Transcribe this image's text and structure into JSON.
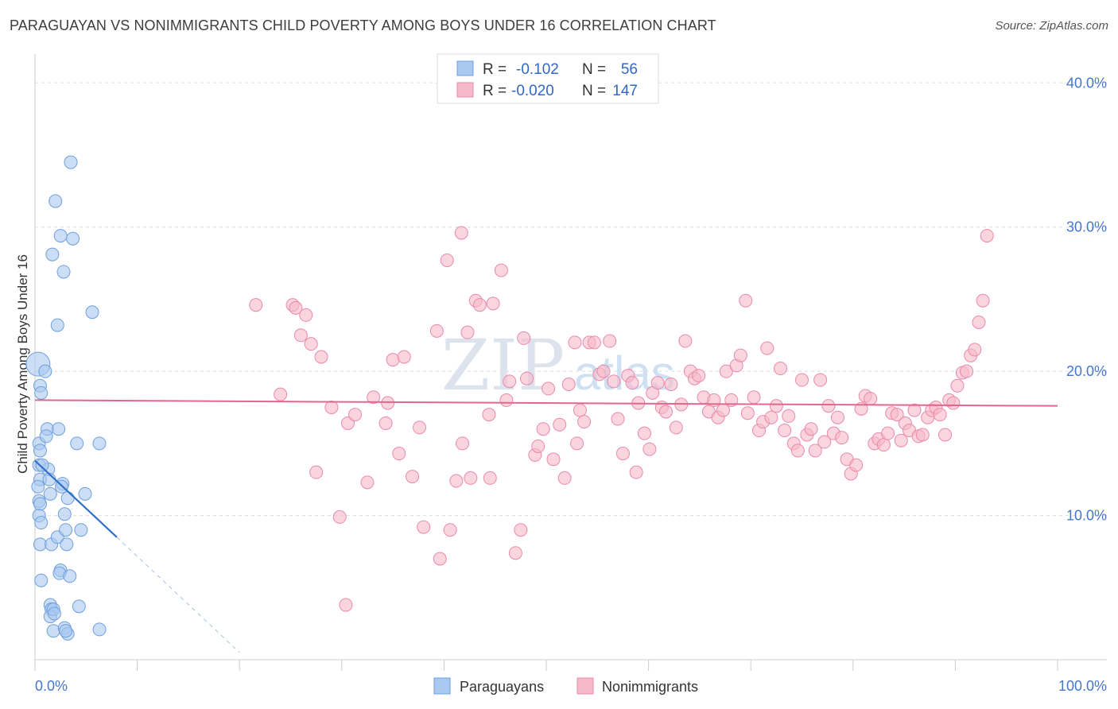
{
  "header": {
    "title": "PARAGUAYAN VS NONIMMIGRANTS CHILD POVERTY AMONG BOYS UNDER 16 CORRELATION CHART",
    "source": "Source: ZipAtlas.com"
  },
  "watermark": {
    "zip": "ZIP",
    "atlas": "atlas"
  },
  "legend": {
    "rows": [
      {
        "r_label": "R =",
        "r_value": "-0.102",
        "n_label": "N =",
        "n_value": "56"
      },
      {
        "r_label": "R =",
        "r_value": "-0.020",
        "n_label": "N =",
        "n_value": "147"
      }
    ]
  },
  "colors": {
    "blue_fill": "#a9c8f0",
    "blue_stroke": "#6f9fdc",
    "blue_line": "#2f6fc9",
    "pink_fill": "#f6b9cc",
    "pink_stroke": "#e98aa8",
    "pink_line": "#e0688f",
    "grid": "#dddddd",
    "tick_text": "#4477cc"
  },
  "chart_data": {
    "type": "scatter",
    "title": "PARAGUAYAN VS NONIMMIGRANTS CHILD POVERTY AMONG BOYS UNDER 16 CORRELATION CHART",
    "xlabel": "",
    "ylabel": "Child Poverty Among Boys Under 16",
    "xlim": [
      0,
      100
    ],
    "ylim": [
      0,
      42
    ],
    "x_tick_labels": [
      "0.0%",
      "100.0%"
    ],
    "y_ticks": [
      10,
      20,
      30,
      40
    ],
    "y_tick_labels": [
      "10.0%",
      "20.0%",
      "30.0%",
      "40.0%"
    ],
    "grid": true,
    "legend_position": "top-center",
    "series": [
      {
        "name": "Paraguayans",
        "R": -0.102,
        "N": 56,
        "trend": {
          "x0": 0,
          "y0": 13.8,
          "x1": 8,
          "y1": 8.5,
          "dashed_to_x": 20,
          "dashed_to_y": 0.5
        },
        "points": [
          [
            0.3,
            20.5
          ],
          [
            0.5,
            19.0
          ],
          [
            0.6,
            18.5
          ],
          [
            0.4,
            15.0
          ],
          [
            0.5,
            14.5
          ],
          [
            0.4,
            13.5
          ],
          [
            0.5,
            12.5
          ],
          [
            0.3,
            12.0
          ],
          [
            0.4,
            11.0
          ],
          [
            0.5,
            10.8
          ],
          [
            0.4,
            10.0
          ],
          [
            0.6,
            9.5
          ],
          [
            0.5,
            8.0
          ],
          [
            0.6,
            5.5
          ],
          [
            1.0,
            20.0
          ],
          [
            1.2,
            16.0
          ],
          [
            1.1,
            15.5
          ],
          [
            1.3,
            13.2
          ],
          [
            1.4,
            12.5
          ],
          [
            1.5,
            11.5
          ],
          [
            1.6,
            8.0
          ],
          [
            1.5,
            3.8
          ],
          [
            1.6,
            3.5
          ],
          [
            1.5,
            3.0
          ],
          [
            1.8,
            2.0
          ],
          [
            2.0,
            31.8
          ],
          [
            2.5,
            29.4
          ],
          [
            1.7,
            28.1
          ],
          [
            2.2,
            23.2
          ],
          [
            2.3,
            16.0
          ],
          [
            2.2,
            8.5
          ],
          [
            2.5,
            6.2
          ],
          [
            2.4,
            6.0
          ],
          [
            1.8,
            3.5
          ],
          [
            1.9,
            3.2
          ],
          [
            2.8,
            26.9
          ],
          [
            2.7,
            12.2
          ],
          [
            2.9,
            10.1
          ],
          [
            3.0,
            9.0
          ],
          [
            3.1,
            8.0
          ],
          [
            2.9,
            2.2
          ],
          [
            3.2,
            1.8
          ],
          [
            3.5,
            34.5
          ],
          [
            3.7,
            29.2
          ],
          [
            3.2,
            11.2
          ],
          [
            3.4,
            5.8
          ],
          [
            4.1,
            15.0
          ],
          [
            4.3,
            3.7
          ],
          [
            4.9,
            11.5
          ],
          [
            5.6,
            24.1
          ],
          [
            4.5,
            9.0
          ],
          [
            3.0,
            2.0
          ],
          [
            2.6,
            12.0
          ],
          [
            6.3,
            15.0
          ],
          [
            0.7,
            13.5
          ],
          [
            6.3,
            2.1
          ]
        ]
      },
      {
        "name": "Nonimmigrants",
        "R": -0.02,
        "N": 147,
        "trend": {
          "x0": 0,
          "y0": 18.0,
          "x1": 100,
          "y1": 17.6
        },
        "points": [
          [
            21.6,
            24.6
          ],
          [
            24.0,
            18.4
          ],
          [
            25.2,
            24.6
          ],
          [
            25.5,
            24.4
          ],
          [
            26.0,
            22.5
          ],
          [
            26.5,
            23.9
          ],
          [
            27.0,
            21.9
          ],
          [
            27.5,
            13.0
          ],
          [
            28.0,
            21.0
          ],
          [
            29.0,
            17.5
          ],
          [
            29.8,
            9.9
          ],
          [
            30.4,
            3.8
          ],
          [
            30.6,
            16.4
          ],
          [
            31.3,
            17.0
          ],
          [
            32.5,
            12.3
          ],
          [
            33.1,
            18.2
          ],
          [
            34.3,
            16.4
          ],
          [
            34.5,
            17.8
          ],
          [
            35.0,
            20.8
          ],
          [
            35.6,
            14.3
          ],
          [
            36.1,
            21.0
          ],
          [
            36.9,
            12.7
          ],
          [
            37.6,
            16.1
          ],
          [
            38.0,
            9.2
          ],
          [
            39.3,
            22.8
          ],
          [
            39.6,
            7.0
          ],
          [
            40.3,
            27.7
          ],
          [
            40.6,
            9.0
          ],
          [
            41.2,
            12.4
          ],
          [
            41.7,
            29.6
          ],
          [
            41.8,
            15.0
          ],
          [
            42.3,
            22.7
          ],
          [
            42.6,
            12.6
          ],
          [
            43.1,
            24.9
          ],
          [
            43.5,
            24.6
          ],
          [
            44.4,
            17.0
          ],
          [
            44.5,
            12.6
          ],
          [
            45.6,
            27.0
          ],
          [
            46.1,
            18.0
          ],
          [
            46.4,
            19.3
          ],
          [
            47.0,
            7.4
          ],
          [
            47.5,
            9.0
          ],
          [
            47.8,
            22.3
          ],
          [
            48.1,
            19.5
          ],
          [
            48.9,
            14.2
          ],
          [
            49.2,
            14.8
          ],
          [
            49.7,
            16.0
          ],
          [
            50.2,
            18.8
          ],
          [
            50.7,
            13.9
          ],
          [
            51.3,
            16.3
          ],
          [
            51.8,
            12.6
          ],
          [
            52.2,
            19.1
          ],
          [
            52.8,
            22.0
          ],
          [
            53.3,
            17.3
          ],
          [
            53.7,
            16.5
          ],
          [
            54.2,
            22.0
          ],
          [
            54.7,
            22.0
          ],
          [
            55.2,
            19.8
          ],
          [
            55.6,
            20.0
          ],
          [
            56.2,
            22.1
          ],
          [
            56.6,
            19.3
          ],
          [
            57.0,
            16.7
          ],
          [
            57.5,
            14.3
          ],
          [
            58.0,
            19.7
          ],
          [
            58.4,
            19.2
          ],
          [
            59.0,
            17.8
          ],
          [
            59.6,
            15.7
          ],
          [
            60.1,
            14.6
          ],
          [
            60.4,
            18.5
          ],
          [
            60.9,
            19.2
          ],
          [
            61.3,
            17.5
          ],
          [
            61.7,
            17.2
          ],
          [
            62.2,
            19.1
          ],
          [
            62.7,
            16.1
          ],
          [
            63.2,
            17.7
          ],
          [
            63.6,
            22.1
          ],
          [
            64.1,
            20.0
          ],
          [
            64.5,
            19.5
          ],
          [
            64.9,
            19.7
          ],
          [
            65.4,
            18.2
          ],
          [
            65.9,
            17.2
          ],
          [
            66.4,
            18.0
          ],
          [
            66.8,
            16.8
          ],
          [
            67.3,
            17.3
          ],
          [
            67.6,
            20.0
          ],
          [
            68.1,
            18.0
          ],
          [
            68.6,
            20.4
          ],
          [
            69.0,
            21.1
          ],
          [
            69.5,
            24.9
          ],
          [
            69.7,
            17.1
          ],
          [
            70.3,
            18.2
          ],
          [
            70.8,
            15.9
          ],
          [
            71.2,
            16.5
          ],
          [
            71.6,
            21.6
          ],
          [
            72.0,
            16.8
          ],
          [
            72.5,
            17.6
          ],
          [
            72.9,
            20.2
          ],
          [
            73.3,
            15.9
          ],
          [
            73.7,
            16.9
          ],
          [
            74.2,
            15.0
          ],
          [
            74.6,
            14.5
          ],
          [
            75.0,
            19.4
          ],
          [
            75.5,
            15.6
          ],
          [
            75.9,
            16.0
          ],
          [
            76.3,
            14.5
          ],
          [
            76.8,
            19.4
          ],
          [
            77.2,
            15.1
          ],
          [
            77.6,
            17.6
          ],
          [
            78.1,
            15.7
          ],
          [
            78.5,
            16.8
          ],
          [
            78.9,
            15.4
          ],
          [
            79.4,
            13.9
          ],
          [
            79.8,
            12.9
          ],
          [
            80.3,
            13.5
          ],
          [
            80.8,
            17.4
          ],
          [
            81.2,
            18.3
          ],
          [
            81.7,
            18.1
          ],
          [
            82.1,
            15.0
          ],
          [
            82.5,
            15.3
          ],
          [
            83.0,
            14.9
          ],
          [
            83.4,
            15.7
          ],
          [
            83.8,
            17.1
          ],
          [
            84.3,
            17.0
          ],
          [
            84.7,
            15.2
          ],
          [
            85.1,
            16.4
          ],
          [
            85.5,
            15.9
          ],
          [
            86.0,
            17.3
          ],
          [
            86.4,
            15.5
          ],
          [
            86.8,
            15.6
          ],
          [
            87.3,
            16.8
          ],
          [
            87.7,
            17.3
          ],
          [
            88.1,
            17.5
          ],
          [
            88.5,
            17.0
          ],
          [
            89.0,
            15.6
          ],
          [
            89.4,
            18.0
          ],
          [
            89.8,
            17.8
          ],
          [
            90.2,
            19.0
          ],
          [
            90.7,
            19.9
          ],
          [
            91.1,
            20.0
          ],
          [
            91.5,
            21.1
          ],
          [
            91.9,
            21.5
          ],
          [
            92.3,
            23.4
          ],
          [
            92.7,
            24.9
          ],
          [
            93.1,
            29.4
          ],
          [
            44.8,
            24.7
          ],
          [
            53.0,
            15.0
          ],
          [
            58.8,
            13.0
          ]
        ]
      }
    ]
  },
  "bottom_legend": {
    "items": [
      {
        "label": "Paraguayans"
      },
      {
        "label": "Nonimmigrants"
      }
    ]
  }
}
